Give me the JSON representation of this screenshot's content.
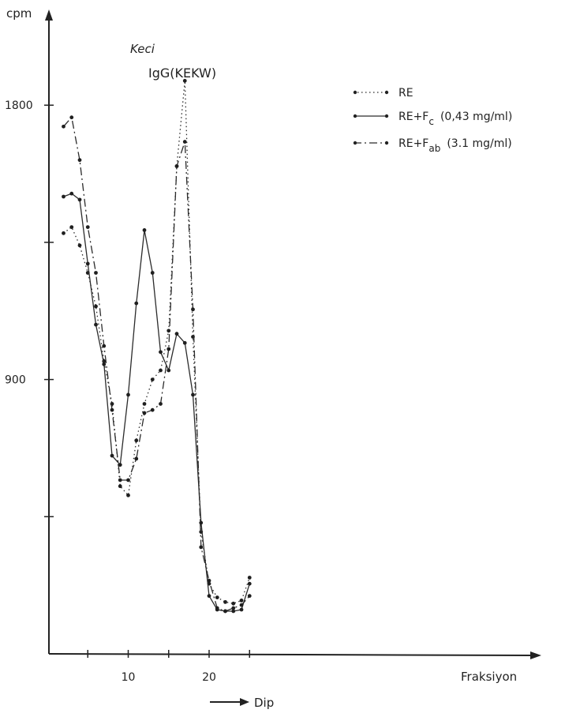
{
  "chart_data": {
    "type": "line",
    "ylabel": "cpm",
    "xlabel": "Fraksiyon",
    "annotation_species": "Keci",
    "annotation_antigen": "IgG(KEKW)",
    "arrow_label": "Dip",
    "xlim": [
      0,
      60
    ],
    "ylim": [
      0,
      1800
    ],
    "x_ticks": [
      10,
      20
    ],
    "y_ticks_labeled": [
      900,
      1800
    ],
    "y_ticks_unlabeled": [
      450,
      1350
    ],
    "grid": false,
    "legend_position": "top-right",
    "series": [
      {
        "name": "RE",
        "style": "dotted",
        "x": [
          2,
          3,
          4,
          5,
          6,
          7,
          8,
          9,
          10,
          11,
          12,
          13,
          14,
          15,
          16,
          17,
          18,
          19,
          20,
          21,
          22,
          23,
          24,
          25
        ],
        "y": [
          1380,
          1400,
          1340,
          1250,
          1140,
          960,
          820,
          550,
          520,
          700,
          820,
          900,
          930,
          1060,
          1600,
          1880,
          1040,
          400,
          230,
          185,
          170,
          165,
          175,
          250
        ]
      },
      {
        "name": "RE+F_c (0,43 mg/ml)",
        "style": "solid",
        "x": [
          2,
          3,
          4,
          5,
          6,
          7,
          8,
          9,
          10,
          11,
          12,
          13,
          14,
          15,
          16,
          17,
          18,
          19,
          20,
          21,
          22,
          23,
          24,
          25
        ],
        "y": [
          1500,
          1510,
          1490,
          1280,
          1080,
          950,
          650,
          620,
          850,
          1150,
          1390,
          1250,
          990,
          930,
          1050,
          1020,
          850,
          430,
          190,
          145,
          140,
          140,
          145,
          230
        ]
      },
      {
        "name": "RE+F_ab (3.1 mg/ml)",
        "style": "dashdot",
        "x": [
          2,
          3,
          4,
          5,
          6,
          7,
          8,
          9,
          10,
          11,
          12,
          13,
          14,
          15,
          16,
          17,
          18,
          19,
          20,
          21,
          22,
          23,
          24,
          25
        ],
        "y": [
          1730,
          1760,
          1620,
          1400,
          1250,
          1010,
          800,
          570,
          570,
          640,
          790,
          800,
          820,
          1000,
          1600,
          1680,
          1130,
          350,
          240,
          150,
          140,
          150,
          160,
          190
        ]
      }
    ]
  },
  "legend": [
    {
      "base": "RE",
      "sub": "",
      "tail": ""
    },
    {
      "base": "RE+F",
      "sub": "c",
      "tail": "(0,43 mg/ml)"
    },
    {
      "base": "RE+F",
      "sub": "ab",
      "tail": "(3.1 mg/ml)"
    }
  ]
}
